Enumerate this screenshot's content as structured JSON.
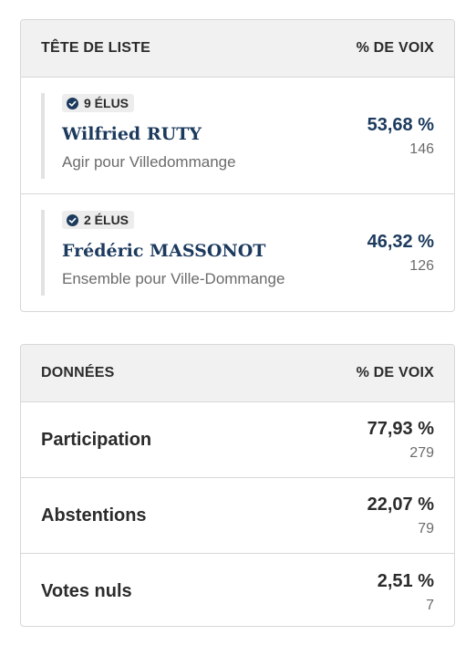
{
  "results": {
    "header": {
      "left": "TÊTE DE LISTE",
      "right": "% DE VOIX"
    },
    "candidates": [
      {
        "badge": "9 ÉLUS",
        "name": "Wilfried RUTY",
        "list": "Agir pour Villedommange",
        "percent": "53,68 %",
        "votes": "146"
      },
      {
        "badge": "2 ÉLUS",
        "name": "Frédéric MASSONOT",
        "list": "Ensemble pour Ville-Dommange",
        "percent": "46,32 %",
        "votes": "126"
      }
    ]
  },
  "data": {
    "header": {
      "left": "DONNÉES",
      "right": "% DE VOIX"
    },
    "rows": [
      {
        "label": "Participation",
        "percent": "77,93 %",
        "count": "279"
      },
      {
        "label": "Abstentions",
        "percent": "22,07 %",
        "count": "79"
      },
      {
        "label": "Votes nuls",
        "percent": "2,51 %",
        "count": "7"
      }
    ]
  },
  "colors": {
    "accent_navy": "#1c3a5e",
    "header_bg": "#f1f1f1",
    "border": "#d7d7d7"
  },
  "icons": {
    "elected_badge": "check-circle-icon"
  }
}
